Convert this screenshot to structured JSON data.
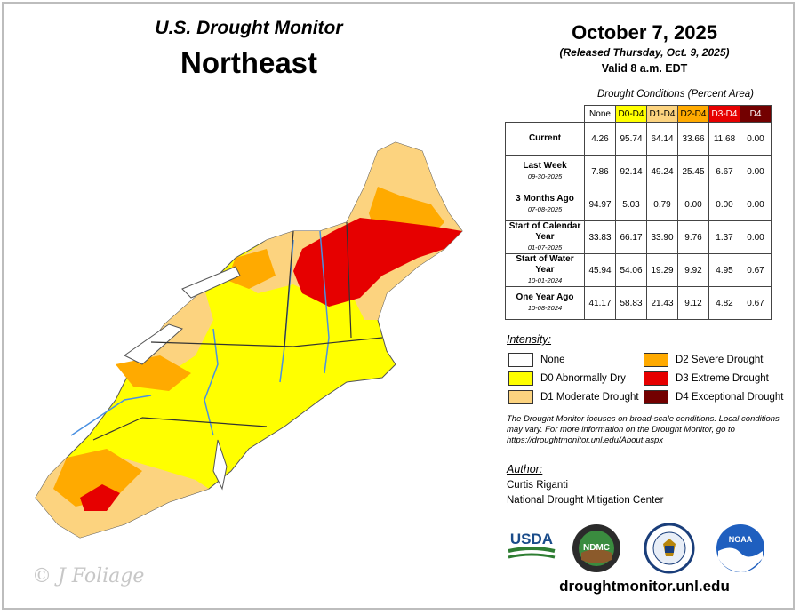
{
  "header": {
    "title": "U.S. Drought Monitor",
    "region": "Northeast",
    "date": "October 7, 2025",
    "released": "(Released Thursday, Oct. 9, 2025)",
    "valid": "Valid 8 a.m. EDT"
  },
  "table": {
    "caption": "Drought Conditions (Percent Area)",
    "columns": [
      "None",
      "D0-D4",
      "D1-D4",
      "D2-D4",
      "D3-D4",
      "D4"
    ],
    "column_colors": [
      "#ffffff",
      "#ffff00",
      "#fcd37f",
      "#ffaa00",
      "#e60000",
      "#730000"
    ],
    "rows": [
      {
        "label": "Current",
        "sub": "",
        "values": [
          "4.26",
          "95.74",
          "64.14",
          "33.66",
          "11.68",
          "0.00"
        ]
      },
      {
        "label": "Last Week",
        "sub": "09-30-2025",
        "values": [
          "7.86",
          "92.14",
          "49.24",
          "25.45",
          "6.67",
          "0.00"
        ]
      },
      {
        "label": "3 Months Ago",
        "sub": "07-08-2025",
        "values": [
          "94.97",
          "5.03",
          "0.79",
          "0.00",
          "0.00",
          "0.00"
        ]
      },
      {
        "label": "Start of Calendar Year",
        "sub": "01-07-2025",
        "values": [
          "33.83",
          "66.17",
          "33.90",
          "9.76",
          "1.37",
          "0.00"
        ]
      },
      {
        "label": "Start of Water Year",
        "sub": "10-01-2024",
        "values": [
          "45.94",
          "54.06",
          "19.29",
          "9.92",
          "4.95",
          "0.67"
        ]
      },
      {
        "label": "One Year Ago",
        "sub": "10-08-2024",
        "values": [
          "41.17",
          "58.83",
          "21.43",
          "9.12",
          "4.82",
          "0.67"
        ]
      }
    ]
  },
  "legend": {
    "title": "Intensity:",
    "items": [
      {
        "label": "None",
        "color": "#ffffff"
      },
      {
        "label": "D0 Abnormally Dry",
        "color": "#ffff00"
      },
      {
        "label": "D1 Moderate Drought",
        "color": "#fcd37f"
      },
      {
        "label": "D2 Severe Drought",
        "color": "#ffaa00"
      },
      {
        "label": "D3 Extreme Drought",
        "color": "#e60000"
      },
      {
        "label": "D4 Exceptional Drought",
        "color": "#730000"
      }
    ]
  },
  "note": "The Drought Monitor focuses on broad-scale conditions. Local conditions may vary. For more information on the Drought Monitor, go to https://droughtmonitor.unl.edu/About.aspx",
  "author": {
    "title": "Author:",
    "name": "Curtis Riganti",
    "org": "National Drought Mitigation Center"
  },
  "logos": {
    "usda": "USDA",
    "ndmc": "NDMC",
    "noaa": "NOAA"
  },
  "website": "droughtmonitor.unl.edu",
  "watermark": "© J Foliage"
}
